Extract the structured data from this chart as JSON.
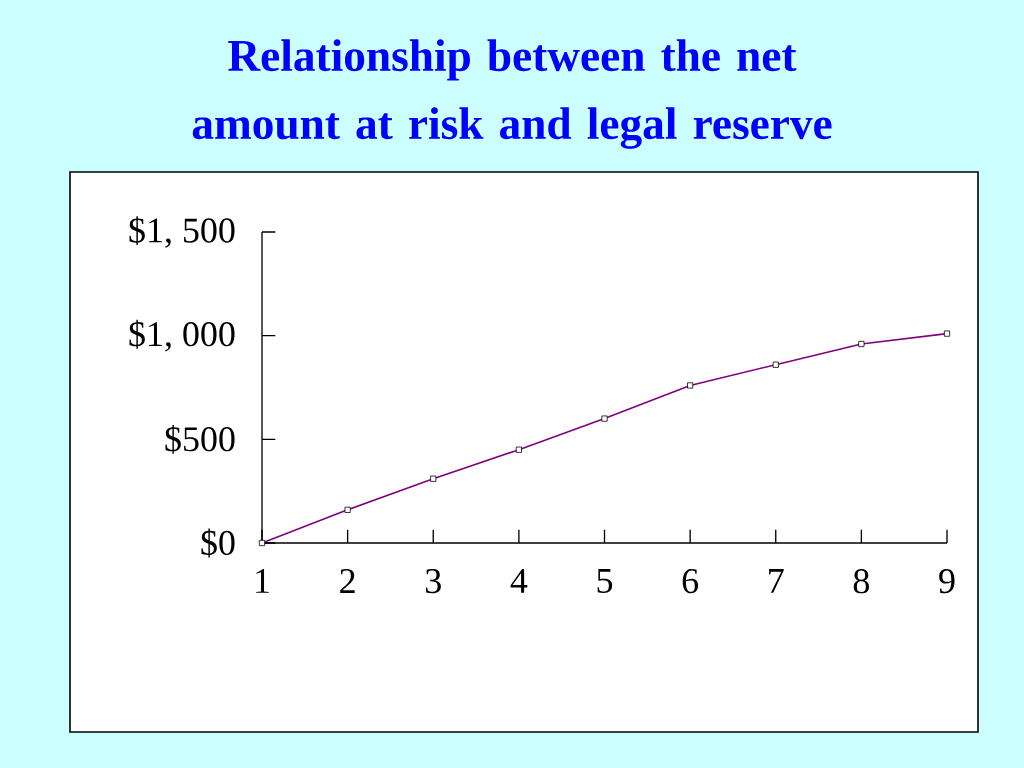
{
  "chart_data": {
    "type": "line",
    "title": "Relationship between the net amount at risk and legal reserve",
    "x": [
      1,
      2,
      3,
      4,
      5,
      6,
      7,
      8,
      9
    ],
    "series": [
      {
        "color": "#800080",
        "values": [
          0,
          160,
          310,
          450,
          600,
          760,
          860,
          960,
          1010
        ]
      }
    ],
    "xlim": [
      1,
      9
    ],
    "xticks": [
      1,
      2,
      3,
      4,
      5,
      6,
      7,
      8,
      9
    ],
    "ylim": [
      0,
      1500
    ],
    "yticks": [
      {
        "value": 0,
        "label": "$0"
      },
      {
        "value": 500,
        "label": "$500"
      },
      {
        "value": 1000,
        "label": "$1, 000"
      },
      {
        "value": 1500,
        "label": "$1, 500"
      }
    ],
    "marker": "square",
    "line_style": "solid"
  }
}
